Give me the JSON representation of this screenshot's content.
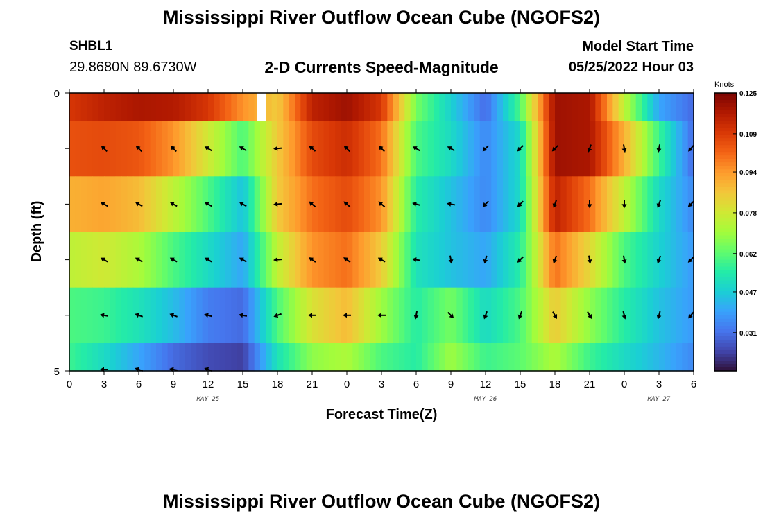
{
  "header": {
    "title": "Mississippi River Outflow Ocean Cube (NGOFS2)",
    "station_id": "SHBL1",
    "coords": "29.8680N  89.6730W",
    "subtitle": "2-D Currents Speed-Magnitude",
    "model_label": "Model Start Time",
    "model_time": "05/25/2022 Hour 03"
  },
  "footer": {
    "title": "Mississippi River Outflow Ocean Cube (NGOFS2)"
  },
  "chart_data": {
    "type": "heatmap",
    "title": "2-D Currents Speed-Magnitude",
    "xlabel": "Forecast Time(Z)",
    "ylabel": "Depth (ft)",
    "x_tick_labels": [
      "0",
      "3",
      "6",
      "9",
      "12",
      "15",
      "18",
      "21",
      "0",
      "3",
      "6",
      "9",
      "12",
      "15",
      "18",
      "21",
      "0",
      "3",
      "6"
    ],
    "x_range_hours": [
      0,
      54
    ],
    "date_labels": [
      {
        "label": "MAY 25",
        "hour": 12
      },
      {
        "label": "MAY 26",
        "hour": 36
      },
      {
        "label": "MAY 27",
        "hour": 51
      }
    ],
    "y_tick_labels": [
      {
        "label": "0",
        "depth": 0
      },
      {
        "label": "5",
        "depth": 5
      }
    ],
    "ylim": [
      0,
      5
    ],
    "colorbar": {
      "units": "Knots",
      "labels": [
        "0.125",
        "0.109",
        "0.094",
        "0.078",
        "0.062",
        "0.047",
        "0.031"
      ],
      "vmin": 0.016,
      "vmax": 0.125,
      "colormap": [
        "#30123b",
        "#4145ab",
        "#4675ed",
        "#39a2fc",
        "#1bcfd4",
        "#24eca6",
        "#61fc6c",
        "#a4fc3b",
        "#d1e834",
        "#f3c63a",
        "#fe9b2d",
        "#f36315",
        "#d93806",
        "#b11901",
        "#7a0403"
      ]
    },
    "layers": [
      {
        "depth_top": 0.0,
        "depth_bottom": 0.5,
        "speed": [
          0.11,
          0.115,
          0.118,
          0.117,
          0.11,
          0.095,
          0.085,
          0.115,
          0.12,
          0.11,
          0.065,
          0.048,
          0.03,
          0.06,
          0.12,
          0.118,
          0.075,
          0.04,
          0.03
        ]
      },
      {
        "depth_top": 0.5,
        "depth_bottom": 1.5,
        "speed": [
          0.105,
          0.106,
          0.104,
          0.095,
          0.078,
          0.06,
          0.085,
          0.106,
          0.112,
          0.1,
          0.06,
          0.05,
          0.035,
          0.05,
          0.12,
          0.118,
          0.09,
          0.058,
          0.03
        ]
      },
      {
        "depth_top": 1.5,
        "depth_bottom": 2.5,
        "speed": [
          0.09,
          0.092,
          0.088,
          0.075,
          0.06,
          0.045,
          0.085,
          0.1,
          0.106,
          0.095,
          0.055,
          0.045,
          0.035,
          0.05,
          0.115,
          0.1,
          0.075,
          0.05,
          0.035
        ]
      },
      {
        "depth_top": 2.5,
        "depth_bottom": 3.5,
        "speed": [
          0.075,
          0.078,
          0.072,
          0.06,
          0.05,
          0.04,
          0.075,
          0.095,
          0.1,
          0.085,
          0.052,
          0.045,
          0.04,
          0.055,
          0.1,
          0.082,
          0.06,
          0.048,
          0.038
        ]
      },
      {
        "depth_top": 3.5,
        "depth_bottom": 4.5,
        "speed": [
          0.06,
          0.058,
          0.052,
          0.044,
          0.033,
          0.03,
          0.06,
          0.08,
          0.088,
          0.07,
          0.055,
          0.065,
          0.05,
          0.06,
          0.085,
          0.068,
          0.055,
          0.045,
          0.038
        ]
      },
      {
        "depth_top": 4.5,
        "depth_bottom": 5.0,
        "speed": [
          0.058,
          0.05,
          0.04,
          0.03,
          0.025,
          0.023,
          0.052,
          0.068,
          0.072,
          0.06,
          0.055,
          0.07,
          0.058,
          0.062,
          0.072,
          0.058,
          0.05,
          0.043,
          0.035
        ]
      }
    ],
    "arrows": [
      {
        "depth": 1.0,
        "hours": [
          3,
          6,
          9,
          12,
          15,
          18,
          21,
          24,
          27,
          30,
          33,
          36,
          39,
          42,
          45,
          48,
          51,
          54
        ],
        "dir_deg": [
          315,
          315,
          315,
          300,
          300,
          265,
          310,
          315,
          315,
          300,
          300,
          225,
          225,
          225,
          200,
          170,
          190,
          220
        ]
      },
      {
        "depth": 2.0,
        "hours": [
          3,
          6,
          9,
          12,
          15,
          18,
          21,
          24,
          27,
          30,
          33,
          36,
          39,
          42,
          45,
          48,
          51,
          54
        ],
        "dir_deg": [
          300,
          300,
          300,
          300,
          300,
          265,
          310,
          310,
          310,
          285,
          280,
          225,
          225,
          200,
          180,
          180,
          200,
          225
        ]
      },
      {
        "depth": 3.0,
        "hours": [
          3,
          6,
          9,
          12,
          15,
          18,
          21,
          24,
          27,
          30,
          33,
          36,
          39,
          42,
          45,
          48,
          51,
          54
        ],
        "dir_deg": [
          300,
          300,
          300,
          300,
          300,
          265,
          305,
          305,
          300,
          280,
          170,
          195,
          225,
          200,
          170,
          170,
          200,
          225
        ]
      },
      {
        "depth": 4.0,
        "hours": [
          3,
          6,
          9,
          12,
          15,
          18,
          21,
          24,
          27,
          30,
          33,
          36,
          39,
          42,
          45,
          48,
          51,
          54
        ],
        "dir_deg": [
          280,
          290,
          290,
          285,
          280,
          250,
          270,
          270,
          270,
          190,
          135,
          200,
          200,
          150,
          150,
          165,
          195,
          220
        ]
      },
      {
        "depth": 5.0,
        "hours": [
          3,
          6,
          9,
          12
        ],
        "dir_deg": [
          270,
          290,
          280,
          290
        ]
      }
    ],
    "missing": {
      "hour_start": 16.2,
      "hour_end": 17.0,
      "depth_top": 0.0,
      "depth_bottom": 0.5
    }
  }
}
